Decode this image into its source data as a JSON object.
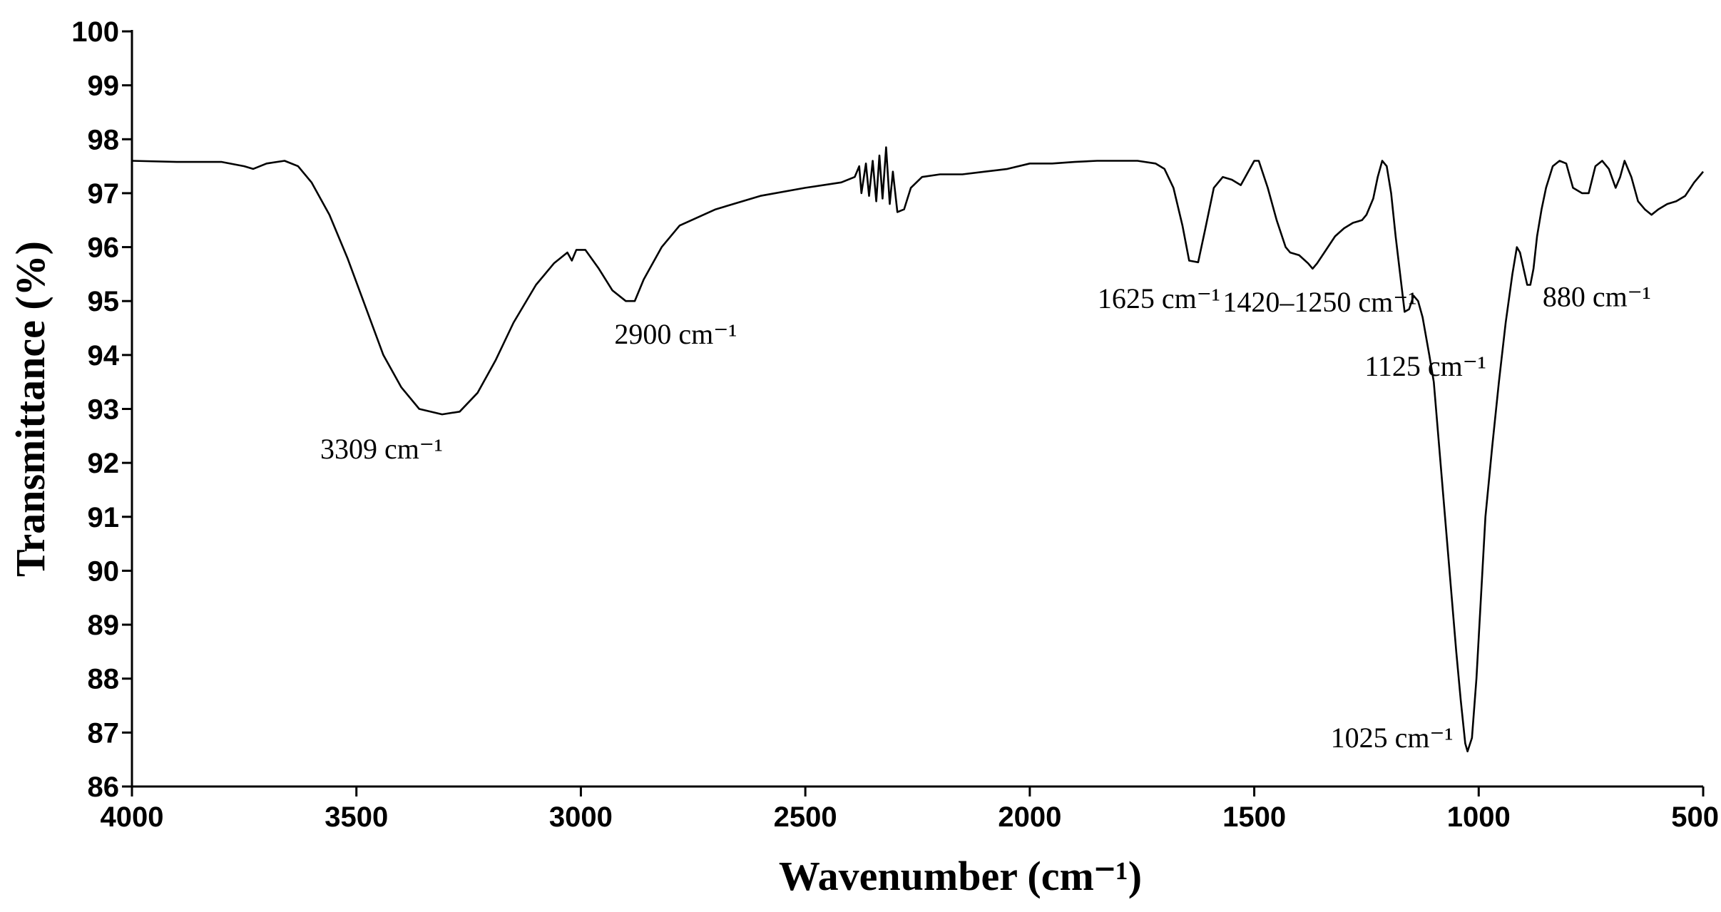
{
  "chart_data": {
    "type": "line",
    "title": "",
    "xlabel": "Wavenumber (cm⁻¹)",
    "ylabel": "Transmittance (%)",
    "xlim": [
      4000,
      500
    ],
    "ylim": [
      86,
      100
    ],
    "x_reversed": true,
    "grid": false,
    "legend": "none",
    "x_ticks": [
      "4000",
      "3500",
      "3000",
      "2500",
      "2000",
      "1500",
      "1000",
      "500"
    ],
    "y_ticks": [
      "86",
      "87",
      "88",
      "89",
      "90",
      "91",
      "92",
      "93",
      "94",
      "95",
      "96",
      "97",
      "98",
      "99",
      "100"
    ],
    "series": [
      {
        "color": "#000000",
        "points": [
          [
            4000,
            97.6
          ],
          [
            3900,
            97.58
          ],
          [
            3800,
            97.58
          ],
          [
            3750,
            97.5
          ],
          [
            3730,
            97.45
          ],
          [
            3700,
            97.55
          ],
          [
            3660,
            97.6
          ],
          [
            3630,
            97.5
          ],
          [
            3600,
            97.2
          ],
          [
            3560,
            96.6
          ],
          [
            3520,
            95.8
          ],
          [
            3480,
            94.9
          ],
          [
            3440,
            94.0
          ],
          [
            3400,
            93.4
          ],
          [
            3360,
            93.0
          ],
          [
            3309,
            92.9
          ],
          [
            3270,
            92.95
          ],
          [
            3230,
            93.3
          ],
          [
            3190,
            93.9
          ],
          [
            3150,
            94.6
          ],
          [
            3100,
            95.3
          ],
          [
            3060,
            95.7
          ],
          [
            3030,
            95.9
          ],
          [
            3020,
            95.75
          ],
          [
            3010,
            95.95
          ],
          [
            2990,
            95.95
          ],
          [
            2960,
            95.6
          ],
          [
            2930,
            95.2
          ],
          [
            2900,
            95.0
          ],
          [
            2880,
            95.0
          ],
          [
            2860,
            95.4
          ],
          [
            2820,
            96.0
          ],
          [
            2780,
            96.4
          ],
          [
            2700,
            96.7
          ],
          [
            2600,
            96.95
          ],
          [
            2500,
            97.1
          ],
          [
            2420,
            97.2
          ],
          [
            2390,
            97.3
          ],
          [
            2380,
            97.5
          ],
          [
            2375,
            97.0
          ],
          [
            2365,
            97.55
          ],
          [
            2358,
            96.95
          ],
          [
            2350,
            97.6
          ],
          [
            2342,
            96.85
          ],
          [
            2335,
            97.7
          ],
          [
            2328,
            96.9
          ],
          [
            2320,
            97.85
          ],
          [
            2312,
            96.8
          ],
          [
            2305,
            97.4
          ],
          [
            2295,
            96.65
          ],
          [
            2280,
            96.7
          ],
          [
            2265,
            97.1
          ],
          [
            2240,
            97.3
          ],
          [
            2200,
            97.35
          ],
          [
            2150,
            97.35
          ],
          [
            2100,
            97.4
          ],
          [
            2050,
            97.45
          ],
          [
            2000,
            97.55
          ],
          [
            1950,
            97.55
          ],
          [
            1900,
            97.58
          ],
          [
            1850,
            97.6
          ],
          [
            1800,
            97.6
          ],
          [
            1760,
            97.6
          ],
          [
            1720,
            97.55
          ],
          [
            1700,
            97.45
          ],
          [
            1680,
            97.1
          ],
          [
            1660,
            96.4
          ],
          [
            1645,
            95.75
          ],
          [
            1625,
            95.72
          ],
          [
            1610,
            96.3
          ],
          [
            1590,
            97.1
          ],
          [
            1570,
            97.3
          ],
          [
            1550,
            97.25
          ],
          [
            1530,
            97.15
          ],
          [
            1510,
            97.45
          ],
          [
            1500,
            97.6
          ],
          [
            1490,
            97.6
          ],
          [
            1470,
            97.1
          ],
          [
            1450,
            96.5
          ],
          [
            1430,
            96.0
          ],
          [
            1420,
            95.9
          ],
          [
            1400,
            95.85
          ],
          [
            1380,
            95.7
          ],
          [
            1370,
            95.6
          ],
          [
            1360,
            95.7
          ],
          [
            1340,
            95.95
          ],
          [
            1320,
            96.2
          ],
          [
            1300,
            96.35
          ],
          [
            1280,
            96.45
          ],
          [
            1260,
            96.5
          ],
          [
            1250,
            96.6
          ],
          [
            1235,
            96.9
          ],
          [
            1225,
            97.3
          ],
          [
            1215,
            97.6
          ],
          [
            1205,
            97.5
          ],
          [
            1195,
            97.0
          ],
          [
            1185,
            96.2
          ],
          [
            1175,
            95.5
          ],
          [
            1165,
            94.8
          ],
          [
            1155,
            94.85
          ],
          [
            1145,
            95.1
          ],
          [
            1135,
            95.0
          ],
          [
            1125,
            94.7
          ],
          [
            1110,
            94.0
          ],
          [
            1100,
            93.5
          ],
          [
            1090,
            92.5
          ],
          [
            1080,
            91.5
          ],
          [
            1070,
            90.5
          ],
          [
            1060,
            89.5
          ],
          [
            1050,
            88.5
          ],
          [
            1040,
            87.6
          ],
          [
            1030,
            86.8
          ],
          [
            1025,
            86.65
          ],
          [
            1015,
            86.9
          ],
          [
            1005,
            88.0
          ],
          [
            995,
            89.5
          ],
          [
            985,
            91.0
          ],
          [
            970,
            92.3
          ],
          [
            955,
            93.5
          ],
          [
            940,
            94.6
          ],
          [
            925,
            95.5
          ],
          [
            915,
            96.0
          ],
          [
            908,
            95.9
          ],
          [
            900,
            95.6
          ],
          [
            892,
            95.3
          ],
          [
            885,
            95.3
          ],
          [
            878,
            95.6
          ],
          [
            870,
            96.2
          ],
          [
            860,
            96.7
          ],
          [
            850,
            97.1
          ],
          [
            835,
            97.5
          ],
          [
            820,
            97.6
          ],
          [
            805,
            97.55
          ],
          [
            790,
            97.1
          ],
          [
            770,
            97.0
          ],
          [
            755,
            97.0
          ],
          [
            740,
            97.5
          ],
          [
            725,
            97.6
          ],
          [
            710,
            97.45
          ],
          [
            695,
            97.1
          ],
          [
            685,
            97.3
          ],
          [
            675,
            97.6
          ],
          [
            660,
            97.3
          ],
          [
            645,
            96.85
          ],
          [
            630,
            96.7
          ],
          [
            615,
            96.6
          ],
          [
            600,
            96.7
          ],
          [
            580,
            96.8
          ],
          [
            560,
            96.85
          ],
          [
            540,
            96.95
          ],
          [
            520,
            97.2
          ],
          [
            505,
            97.35
          ],
          [
            500,
            97.4
          ]
        ]
      }
    ],
    "annotations": [
      {
        "label": "3309 cm⁻¹",
        "x": 3309,
        "y": 92.9
      },
      {
        "label": "2900 cm⁻¹",
        "x": 2900,
        "y": 95.0
      },
      {
        "label": "1625 cm⁻¹",
        "x": 1625,
        "y": 95.72
      },
      {
        "label": "1420–1250 cm⁻¹",
        "x": 1370,
        "y": 95.6
      },
      {
        "label": "1125 cm⁻¹",
        "x": 1125,
        "y": 94.7
      },
      {
        "label": "880 cm⁻¹",
        "x": 880,
        "y": 95.3
      },
      {
        "label": "1025 cm⁻¹",
        "x": 1025,
        "y": 86.65
      }
    ]
  }
}
